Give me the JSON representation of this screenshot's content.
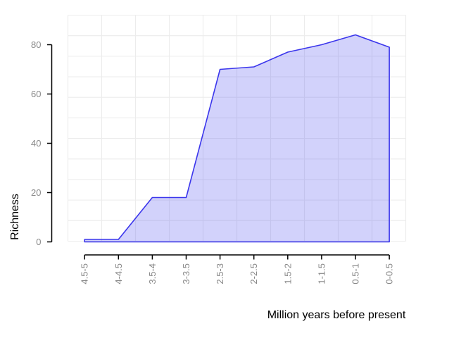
{
  "chart_data": {
    "type": "area",
    "title": "",
    "xlabel": "Million years before present",
    "ylabel": "Richness",
    "categories": [
      "4.5-5",
      "4-4.5",
      "3.5-4",
      "3-3.5",
      "2.5-3",
      "2-2.5",
      "1.5-2",
      "1-1.5",
      "0.5-1",
      "0-0.5"
    ],
    "values": [
      1,
      1,
      18,
      18,
      70,
      71,
      77,
      80,
      84,
      79
    ],
    "yticks": [
      0,
      20,
      40,
      60,
      80
    ],
    "ylim": [
      0,
      80
    ],
    "grid": "on",
    "legend": "none",
    "colors": {
      "line": "#3B36EC",
      "fill": "rgba(82,82,238,0.26)",
      "grid": "#ECECEC",
      "axis": "#000000",
      "tick_label": "#888888",
      "background": "#FFFFFF"
    }
  }
}
